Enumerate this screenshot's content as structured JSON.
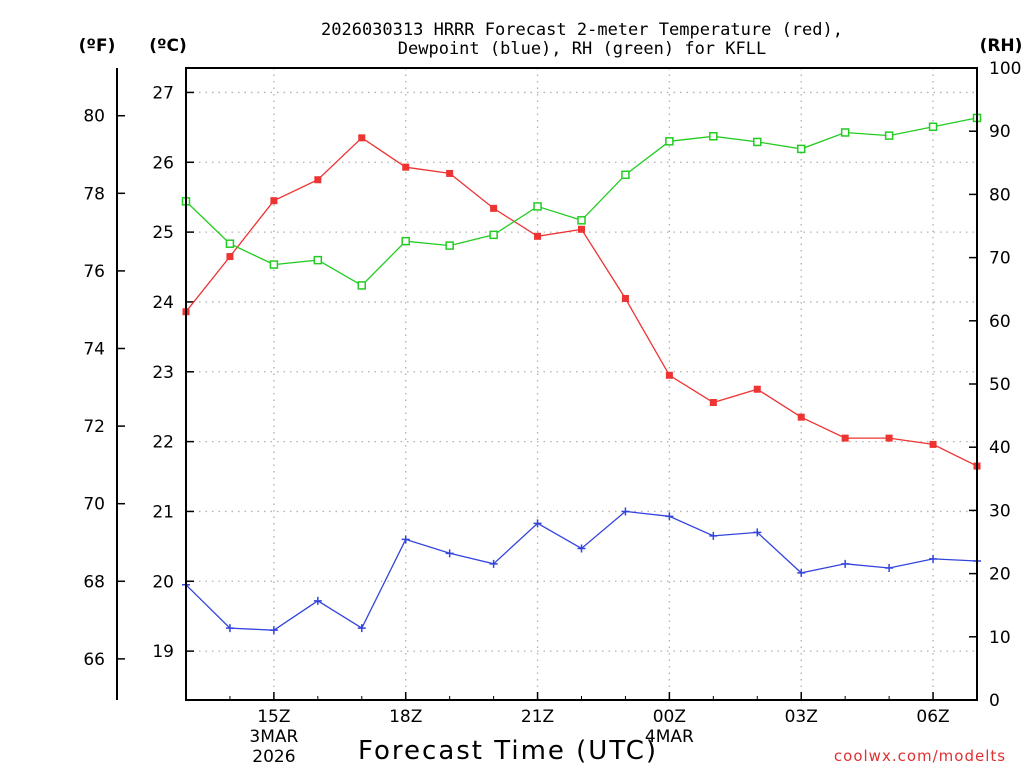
{
  "chart_data": {
    "type": "line",
    "title_lines": [
      "2026030313 HRRR Forecast 2-meter Temperature (red),",
      "Dewpoint (blue), RH (green) for KFLL"
    ],
    "xlabel": "Forecast Time (UTC)",
    "credit": "coolwx.com/modelts",
    "unit_labels": {
      "fahrenheit": "(ºF)",
      "celsius": "(ºC)",
      "rh": "(RH)"
    },
    "hours": [
      13,
      14,
      15,
      16,
      17,
      18,
      19,
      20,
      21,
      22,
      23,
      24,
      25,
      26,
      27,
      28,
      29,
      30,
      31
    ],
    "xlim": [
      13,
      31
    ],
    "x_ticks": [
      {
        "hour": 15,
        "label": "15Z",
        "sub1": "3MAR",
        "sub2": "2026"
      },
      {
        "hour": 18,
        "label": "18Z",
        "sub1": "",
        "sub2": ""
      },
      {
        "hour": 21,
        "label": "21Z",
        "sub1": "",
        "sub2": ""
      },
      {
        "hour": 24,
        "label": "00Z",
        "sub1": "4MAR",
        "sub2": ""
      },
      {
        "hour": 27,
        "label": "03Z",
        "sub1": "",
        "sub2": ""
      },
      {
        "hour": 30,
        "label": "06Z",
        "sub1": "",
        "sub2": ""
      }
    ],
    "celsius_ylim": [
      18.3,
      27.35
    ],
    "celsius_ticks": [
      19,
      20,
      21,
      22,
      23,
      24,
      25,
      26,
      27
    ],
    "fahrenheit_ticks": [
      66,
      68,
      70,
      72,
      74,
      76,
      78,
      80
    ],
    "rh_ylim": [
      0,
      100
    ],
    "rh_ticks": [
      0,
      10,
      20,
      30,
      40,
      50,
      60,
      70,
      80,
      90,
      100
    ],
    "series": [
      {
        "name": "2-meter Temperature",
        "axis": "celsius",
        "color": "#ee3333",
        "marker": "filled-square",
        "values": [
          23.86,
          24.65,
          25.45,
          25.75,
          26.35,
          25.93,
          25.84,
          25.34,
          24.94,
          25.04,
          24.05,
          22.95,
          22.56,
          22.75,
          22.35,
          22.05,
          22.05,
          21.96,
          21.65
        ]
      },
      {
        "name": "Dewpoint",
        "axis": "celsius",
        "color": "#3344dd",
        "marker": "plus",
        "values": [
          19.95,
          19.33,
          19.3,
          19.72,
          19.33,
          20.6,
          20.4,
          20.25,
          20.83,
          20.47,
          21.0,
          20.93,
          20.65,
          20.7,
          20.12,
          20.25,
          20.19,
          20.32,
          20.29
        ]
      },
      {
        "name": "Relative Humidity",
        "axis": "rh",
        "color": "#22cc22",
        "marker": "open-square",
        "values": [
          78.9,
          72.2,
          68.9,
          69.6,
          65.6,
          72.6,
          71.9,
          73.6,
          78.1,
          75.9,
          83.1,
          88.4,
          89.2,
          88.3,
          87.2,
          89.8,
          89.3,
          90.7,
          92.1
        ]
      }
    ]
  }
}
